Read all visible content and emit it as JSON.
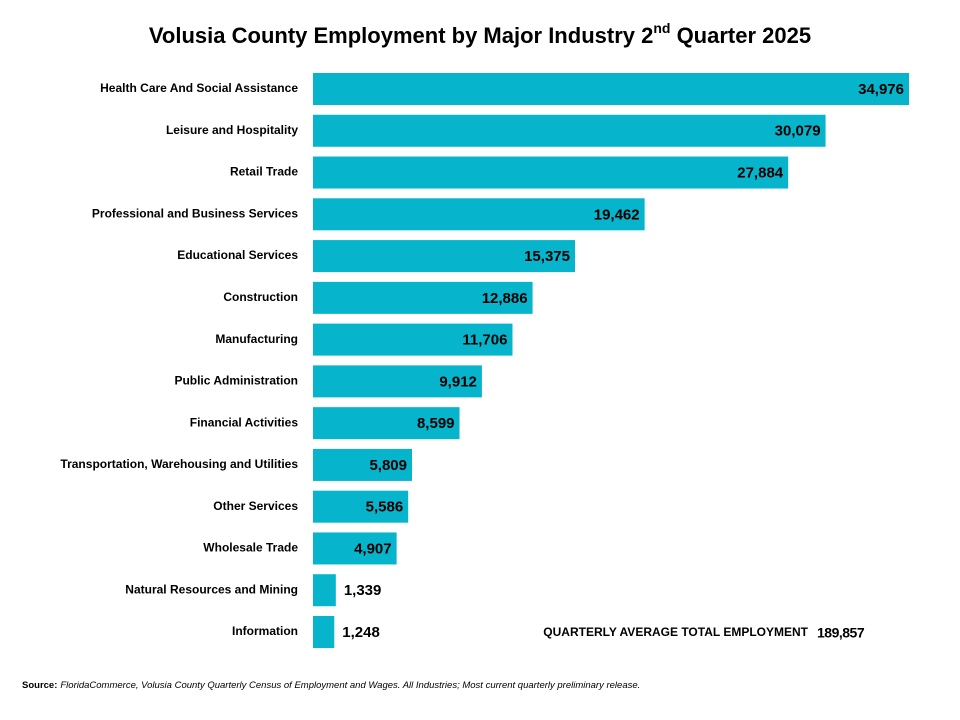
{
  "chart_data": {
    "type": "barh",
    "title": [
      "Volusia County Employment by Major Industry 2",
      "nd",
      " Quarter 2025"
    ],
    "categories": [
      "Health Care And Social Assistance",
      "Leisure and Hospitality",
      "Retail Trade",
      "Professional and Business Services",
      "Educational Services",
      "Construction",
      "Manufacturing",
      "Public Administration",
      "Financial Activities",
      "Transportation, Warehousing and Utilities",
      "Other Services",
      "Wholesale Trade",
      "Natural Resources and Mining",
      "Information"
    ],
    "values": [
      34976,
      30079,
      27884,
      19462,
      15375,
      12886,
      11706,
      9912,
      8599,
      5809,
      5586,
      4907,
      1339,
      1248
    ],
    "value_labels": [
      "34,976",
      "30,079",
      "27,884",
      "19,462",
      "15,375",
      "12,886",
      "11,706",
      "9,912",
      "8,599",
      "5,809",
      "5,586",
      "4,907",
      "1,339",
      "1,248"
    ],
    "color": "#06b4cc",
    "annotation": {
      "label": "QUARTERLY AVERAGE TOTAL EMPLOYMENT",
      "value": 189857,
      "value_label": "189,857"
    },
    "source": {
      "label": "Source:",
      "text": "FloridaCommerce, Volusia County Quarterly Census of Employment and Wages. All Industries; Most current quarterly preliminary release."
    }
  }
}
